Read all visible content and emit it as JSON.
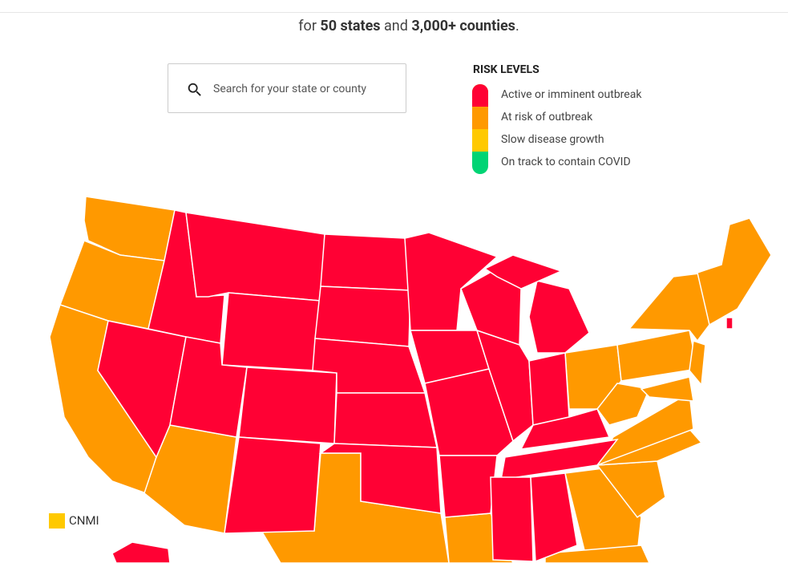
{
  "intro": {
    "prefix": "for",
    "states": "50 states",
    "and": "and",
    "counties": "3,000+ counties",
    "suffix": "."
  },
  "search": {
    "placeholder": "Search for your state or county"
  },
  "legend": {
    "title": "RISK LEVELS",
    "levels": [
      "Active or imminent outbreak",
      "At risk of outbreak",
      "Slow disease growth",
      "On track to contain COVID"
    ]
  },
  "territory": {
    "label": "CNMI"
  }
}
